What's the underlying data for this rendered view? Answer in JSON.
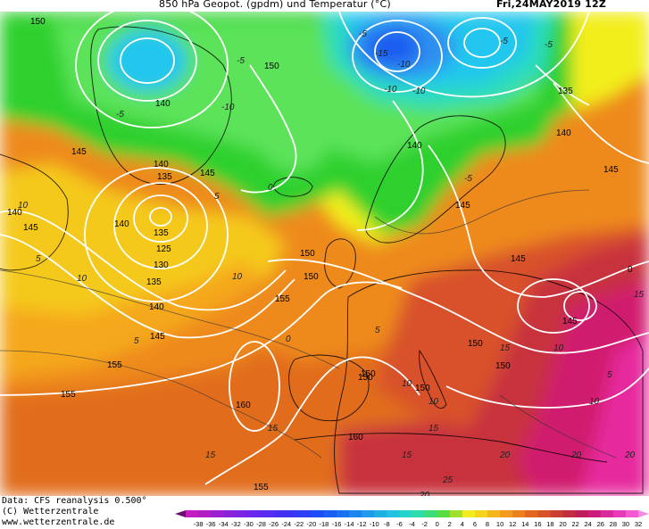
{
  "header": {
    "title": "850 hPa Geopot. (gpdm) und Temperatur (°C)",
    "date": "Fri,24MAY2019 12Z"
  },
  "map": {
    "geopotential_labels": [
      "150",
      "150",
      "140",
      "140",
      "135",
      "140",
      "140",
      "145",
      "145",
      "145",
      "140",
      "145",
      "140",
      "135",
      "125",
      "130",
      "135",
      "140",
      "145",
      "145",
      "145",
      "150",
      "150",
      "150",
      "155",
      "155",
      "155",
      "160",
      "160",
      "150",
      "150",
      "145",
      "150",
      "155",
      "150",
      "135",
      "0"
    ],
    "temperature_labels": [
      "-5",
      "-10",
      "-5",
      "-10",
      "-15",
      "-5",
      "-5",
      "-10",
      "-5",
      "5",
      "10",
      "10",
      "10",
      "5",
      "0",
      "5",
      "10",
      "10",
      "15",
      "15",
      "15",
      "20",
      "15",
      "-10",
      "20",
      "20",
      "25",
      "15",
      "10",
      "5",
      "5",
      "0",
      "-5",
      "15",
      "10",
      "20"
    ],
    "colors": {
      "deep_blue": "#1e5cf0",
      "blue": "#2f8ff0",
      "cyan": "#20c6ee",
      "teal": "#2cdcbe",
      "green_light": "#5ce35a",
      "green": "#2dd02d",
      "yellow": "#f2ee1c",
      "yellow_orange": "#f5c91a",
      "orange_light": "#f5a81f",
      "orange": "#ee8a1d",
      "orange_dark": "#e16d1e",
      "red_orange": "#d8512a",
      "red": "#c8303c",
      "magenta": "#d01e6e",
      "pink": "#e62a9e"
    }
  },
  "footer": {
    "data_line": "Data: CFS reanalysis 0.500°",
    "copyright_line": "(C) Wetterzentrale",
    "url_line": "www.wetterzentrale.de"
  },
  "legend": {
    "ticks": [
      "-38",
      "-36",
      "-34",
      "-32",
      "-30",
      "-28",
      "-26",
      "-24",
      "-22",
      "-20",
      "-18",
      "-16",
      "-14",
      "-12",
      "-10",
      "-8",
      "-6",
      "-4",
      "-2",
      "0",
      "2",
      "4",
      "6",
      "8",
      "10",
      "12",
      "14",
      "16",
      "18",
      "20",
      "22",
      "24",
      "26",
      "28",
      "30",
      "32"
    ],
    "colors": [
      "#c21cc0",
      "#b01dc4",
      "#9d1fd0",
      "#8b22db",
      "#7a25e6",
      "#6828ec",
      "#572bf0",
      "#472ff2",
      "#3836f4",
      "#2a41f5",
      "#1e4ef6",
      "#1a5ef4",
      "#1b72f1",
      "#1d86ee",
      "#1f9bea",
      "#20b0e6",
      "#21c4e0",
      "#22d6cc",
      "#2cdcaa",
      "#3ddc7a",
      "#57dc42",
      "#9ee02a",
      "#f0ee1e",
      "#f6d41c",
      "#f5b81c",
      "#f29c1d",
      "#ec821e",
      "#e2681f",
      "#d85426",
      "#cc3e33",
      "#c32e3f",
      "#c01e5a",
      "#cc1c7c",
      "#d82a9c",
      "#e63cba",
      "#f15ad2"
    ]
  }
}
